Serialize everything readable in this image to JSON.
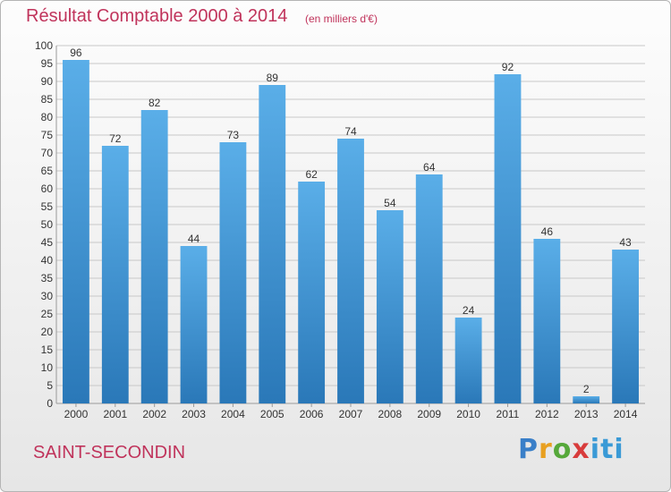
{
  "header": {
    "title": "Résultat Comptable 2000 à 2014",
    "subtitle": "(en milliers d'€)"
  },
  "footer": {
    "place": "SAINT-SECONDIN",
    "logo": "Proxiti"
  },
  "colors": {
    "accent": "#c0335b",
    "bar_top": "#5aaee8",
    "bar_bottom": "#2a78b8",
    "grid": "#c8c8c8",
    "axis_text": "#333333"
  },
  "chart_data": {
    "type": "bar",
    "title": "Résultat Comptable 2000 à 2014",
    "xlabel": "",
    "ylabel": "",
    "ylim": [
      0,
      100
    ],
    "ytick_step": 5,
    "grid": true,
    "categories": [
      "2000",
      "2001",
      "2002",
      "2003",
      "2004",
      "2005",
      "2006",
      "2007",
      "2008",
      "2009",
      "2010",
      "2011",
      "2012",
      "2013",
      "2014"
    ],
    "values": [
      96,
      72,
      82,
      44,
      73,
      89,
      62,
      74,
      54,
      64,
      24,
      92,
      46,
      2,
      43
    ]
  }
}
